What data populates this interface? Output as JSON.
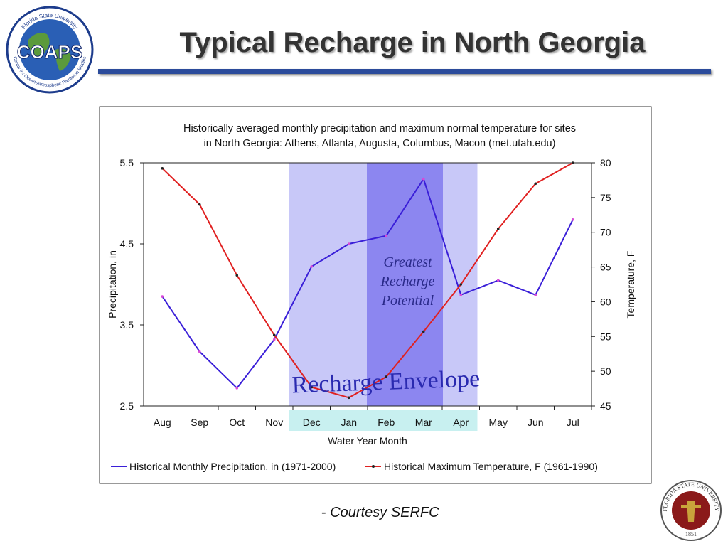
{
  "page": {
    "title": "Typical Recharge in North Georgia",
    "courtesy_dash": "- ",
    "courtesy": "Courtesy SERFC",
    "logo_coaps": {
      "top_text": "Florida State University",
      "main": "COAPS",
      "bottom_text": "Center for Ocean-Atmospheric Prediction Studies"
    },
    "seal": {
      "text": "FLORIDA STATE UNIVERSITY",
      "year": "1851"
    }
  },
  "chart_data": {
    "type": "line",
    "title": "Historically averaged monthly precipitation and maximum normal temperature for sites in North Georgia: Athens, Atlanta, Augusta, Columbus, Macon (met.utah.edu)",
    "title_lines": [
      "Historically averaged monthly precipitation and maximum normal temperature for sites",
      "in North Georgia: Athens, Atlanta, Augusta, Columbus, Macon (met.utah.edu)"
    ],
    "xlabel": "Water Year Month",
    "ylabel_left": "Precipitation, in",
    "ylabel_right": "Temperature, F",
    "categories": [
      "Aug",
      "Sep",
      "Oct",
      "Nov",
      "Dec",
      "Jan",
      "Feb",
      "Mar",
      "Apr",
      "May",
      "Jun",
      "Jul"
    ],
    "ylim_left": [
      2.5,
      5.5
    ],
    "yticks_left": [
      2.5,
      3.5,
      4.5,
      5.5
    ],
    "ylim_right": [
      45,
      80
    ],
    "yticks_right": [
      45,
      50,
      55,
      60,
      65,
      70,
      75,
      80
    ],
    "series": [
      {
        "name": "Historical  Monthly Precipitation, in (1971-2000)",
        "axis": "left",
        "color": "#3a1fd8",
        "values": [
          3.85,
          3.17,
          2.72,
          3.32,
          4.22,
          4.5,
          4.6,
          5.3,
          3.87,
          4.05,
          3.87,
          4.8
        ]
      },
      {
        "name": "Historical Maximum Temperature, F (1961-1990)",
        "axis": "right",
        "color": "#e02020",
        "values": [
          79.2,
          74.0,
          63.8,
          55.2,
          47.7,
          46.2,
          49.2,
          55.7,
          62.5,
          70.5,
          77.0,
          80.0
        ]
      }
    ],
    "annotations": {
      "recharge_envelope": {
        "label": "Recharge Envelope",
        "from": "Dec",
        "to": "Apr",
        "color": "#c8c8f8"
      },
      "greatest_recharge": {
        "label_lines": [
          "Greatest",
          "Recharge",
          "Potential"
        ],
        "from": "Feb",
        "to": "Mar",
        "color": "#8c86f0"
      }
    },
    "highlighted_ticks": [
      "Dec",
      "Jan",
      "Feb",
      "Mar",
      "Apr"
    ],
    "highlight_color": "#c8f0f0",
    "grid": false,
    "legend_position": "bottom"
  }
}
